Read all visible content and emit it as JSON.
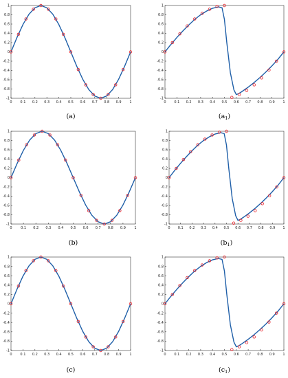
{
  "chart_data": [
    {
      "type": "line",
      "caption": "(a)",
      "xlim": [
        0,
        1
      ],
      "ylim": [
        -1,
        1
      ],
      "xticks": [
        "0",
        "0.1",
        "0.2",
        "0.3",
        "0.4",
        "0.5",
        "0.6",
        "0.7",
        "0.8",
        "0.9",
        "1"
      ],
      "yticks": [
        "-1",
        "-0.8",
        "-0.6",
        "-0.4",
        "-0.2",
        "0",
        "0.2",
        "0.4",
        "0.6",
        "0.8",
        "1"
      ],
      "series": [
        {
          "kind": "line",
          "color": "#1f5fa8",
          "x": [
            0,
            0.05,
            0.1,
            0.15,
            0.2,
            0.25,
            0.3,
            0.35,
            0.4,
            0.45,
            0.5,
            0.55,
            0.6,
            0.65,
            0.7,
            0.75,
            0.8,
            0.85,
            0.9,
            0.95,
            1
          ],
          "y": [
            0,
            0.31,
            0.59,
            0.81,
            0.95,
            1,
            0.95,
            0.81,
            0.59,
            0.31,
            0,
            -0.31,
            -0.59,
            -0.81,
            -0.95,
            -1,
            -0.95,
            -0.81,
            -0.59,
            -0.31,
            0
          ]
        },
        {
          "kind": "markers",
          "color": "#e8222a",
          "x": [
            0,
            0.0625,
            0.125,
            0.1875,
            0.25,
            0.3125,
            0.375,
            0.4375,
            0.5,
            0.5625,
            0.625,
            0.6875,
            0.75,
            0.8125,
            0.875,
            0.9375,
            1
          ],
          "y": [
            0.0,
            0.38,
            0.71,
            0.92,
            1.0,
            0.92,
            0.71,
            0.38,
            0.0,
            -0.38,
            -0.71,
            -0.92,
            -1.0,
            -0.92,
            -0.71,
            -0.38,
            0.0
          ]
        }
      ]
    },
    {
      "type": "line",
      "caption": "(a",
      "caption_sub": "1",
      "caption_close": ")",
      "xlim": [
        0,
        1
      ],
      "ylim": [
        -1,
        1
      ],
      "xticks": [
        "0",
        "0.1",
        "0.2",
        "0.3",
        "0.4",
        "0.5",
        "0.6",
        "0.7",
        "0.8",
        "0.9",
        "1"
      ],
      "yticks": [
        "-1",
        "-0.8",
        "-0.6",
        "-0.4",
        "-0.2",
        "0",
        "0.2",
        "0.4",
        "0.6",
        "0.8",
        "1"
      ],
      "series": [
        {
          "kind": "line",
          "color": "#1f5fa8",
          "x": [
            0,
            0.05,
            0.1,
            0.15,
            0.2,
            0.25,
            0.3,
            0.35,
            0.4,
            0.45,
            0.48,
            0.5,
            0.52,
            0.55,
            0.58,
            0.6,
            0.62,
            0.65,
            0.7,
            0.75,
            0.8,
            0.85,
            0.9,
            0.95,
            1
          ],
          "y": [
            0,
            0.16,
            0.31,
            0.45,
            0.58,
            0.7,
            0.8,
            0.88,
            0.94,
            0.97,
            0.95,
            0.7,
            0.2,
            -0.45,
            -0.82,
            -0.92,
            -0.9,
            -0.85,
            -0.76,
            -0.66,
            -0.55,
            -0.43,
            -0.3,
            -0.16,
            0
          ]
        },
        {
          "kind": "markers",
          "color": "#e8222a",
          "x": [
            0,
            0.0625,
            0.125,
            0.1875,
            0.25,
            0.3125,
            0.375,
            0.4375,
            0.5,
            0.5625,
            0.625,
            0.6875,
            0.75,
            0.8125,
            0.875,
            0.9375,
            1
          ],
          "y": [
            0.0,
            0.2,
            0.39,
            0.56,
            0.71,
            0.83,
            0.92,
            0.98,
            1.0,
            -0.98,
            -0.92,
            -0.83,
            -0.71,
            -0.56,
            -0.39,
            -0.2,
            0.0
          ]
        }
      ]
    },
    {
      "type": "line",
      "caption": "(b)",
      "xlim": [
        0,
        1
      ],
      "ylim": [
        -1,
        1
      ],
      "xticks": [
        "0",
        "0.1",
        "0.2",
        "0.3",
        "0.4",
        "0.5",
        "0.6",
        "0.7",
        "0.8",
        "0.9",
        "1"
      ],
      "yticks": [
        "-1",
        "-0.8",
        "-0.6",
        "-0.4",
        "-0.2",
        "0",
        "0.2",
        "0.4",
        "0.6",
        "0.8",
        "1"
      ],
      "series": [
        {
          "kind": "line",
          "color": "#1f5fa8",
          "x": [
            0,
            0.05,
            0.1,
            0.15,
            0.2,
            0.25,
            0.3,
            0.35,
            0.4,
            0.45,
            0.5,
            0.55,
            0.6,
            0.65,
            0.7,
            0.75,
            0.8,
            0.85,
            0.9,
            0.95,
            1
          ],
          "y": [
            0,
            0.31,
            0.59,
            0.81,
            0.95,
            1,
            0.95,
            0.81,
            0.59,
            0.31,
            0,
            -0.31,
            -0.59,
            -0.81,
            -0.95,
            -1,
            -0.95,
            -0.81,
            -0.59,
            -0.31,
            0
          ]
        },
        {
          "kind": "markers",
          "color": "#e8222a",
          "x": [
            0,
            0.0625,
            0.125,
            0.1875,
            0.25,
            0.3125,
            0.375,
            0.4375,
            0.5,
            0.5625,
            0.625,
            0.6875,
            0.75,
            0.8125,
            0.875,
            0.9375,
            1
          ],
          "y": [
            0.0,
            0.38,
            0.71,
            0.92,
            1.0,
            0.92,
            0.71,
            0.38,
            0.0,
            -0.38,
            -0.71,
            -0.92,
            -1.0,
            -0.92,
            -0.71,
            -0.38,
            0.0
          ]
        }
      ]
    },
    {
      "type": "line",
      "caption": "(b",
      "caption_sub": "1",
      "caption_close": ")",
      "xlim": [
        0,
        1
      ],
      "ylim": [
        -1,
        1
      ],
      "xticks": [
        "0",
        "0.1",
        "0.2",
        "0.3",
        "0.4",
        "0.5",
        "0.6",
        "0.7",
        "0.8",
        "0.9",
        "1"
      ],
      "yticks": [
        "-1",
        "-0.8",
        "-0.6",
        "-0.4",
        "-0.2",
        "0",
        "0.2",
        "0.4",
        "0.6",
        "0.8",
        "1"
      ],
      "series": [
        {
          "kind": "line",
          "color": "#1f5fa8",
          "x": [
            0,
            0.05,
            0.1,
            0.15,
            0.2,
            0.25,
            0.3,
            0.35,
            0.4,
            0.45,
            0.48,
            0.5,
            0.52,
            0.55,
            0.58,
            0.6,
            0.62,
            0.65,
            0.7,
            0.75,
            0.8,
            0.85,
            0.9,
            0.95,
            1
          ],
          "y": [
            0,
            0.16,
            0.31,
            0.45,
            0.58,
            0.7,
            0.8,
            0.88,
            0.94,
            0.97,
            0.95,
            0.7,
            0.2,
            -0.45,
            -0.82,
            -0.92,
            -0.9,
            -0.85,
            -0.76,
            -0.66,
            -0.55,
            -0.43,
            -0.3,
            -0.16,
            0
          ]
        },
        {
          "kind": "markers",
          "color": "#e8222a",
          "x": [
            0,
            0.0625,
            0.125,
            0.1875,
            0.25,
            0.3125,
            0.375,
            0.4375,
            0.5,
            0.5625,
            0.625,
            0.6875,
            0.75,
            0.8125,
            0.875,
            0.9375,
            1
          ],
          "y": [
            0.0,
            0.2,
            0.39,
            0.56,
            0.71,
            0.83,
            0.92,
            0.98,
            1.0,
            -0.98,
            -0.92,
            -0.83,
            -0.71,
            -0.56,
            -0.39,
            -0.2,
            0.0
          ]
        }
      ]
    },
    {
      "type": "line",
      "caption": "(c)",
      "xlim": [
        0,
        1
      ],
      "ylim": [
        -1,
        1
      ],
      "xticks": [
        "0",
        "0.1",
        "0.2",
        "0.3",
        "0.4",
        "0.5",
        "0.6",
        "0.7",
        "0.8",
        "0.9",
        "1"
      ],
      "yticks": [
        "-1",
        "-0.8",
        "-0.6",
        "-0.4",
        "-0.2",
        "0",
        "0.2",
        "0.4",
        "0.6",
        "0.8",
        "1"
      ],
      "series": [
        {
          "kind": "line",
          "color": "#1f5fa8",
          "x": [
            0,
            0.05,
            0.1,
            0.15,
            0.2,
            0.25,
            0.3,
            0.35,
            0.4,
            0.45,
            0.5,
            0.55,
            0.6,
            0.65,
            0.7,
            0.75,
            0.8,
            0.85,
            0.9,
            0.95,
            1
          ],
          "y": [
            0,
            0.31,
            0.59,
            0.81,
            0.95,
            1,
            0.95,
            0.81,
            0.59,
            0.31,
            0,
            -0.31,
            -0.59,
            -0.81,
            -0.95,
            -1,
            -0.95,
            -0.81,
            -0.59,
            -0.31,
            0
          ]
        },
        {
          "kind": "markers",
          "color": "#e8222a",
          "x": [
            0,
            0.0625,
            0.125,
            0.1875,
            0.25,
            0.3125,
            0.375,
            0.4375,
            0.5,
            0.5625,
            0.625,
            0.6875,
            0.75,
            0.8125,
            0.875,
            0.9375,
            1
          ],
          "y": [
            0.0,
            0.38,
            0.71,
            0.92,
            1.0,
            0.92,
            0.71,
            0.38,
            0.0,
            -0.38,
            -0.71,
            -0.92,
            -1.0,
            -0.92,
            -0.71,
            -0.38,
            0.0
          ]
        }
      ]
    },
    {
      "type": "line",
      "caption": "(c",
      "caption_sub": "1",
      "caption_close": ")",
      "xlim": [
        0,
        1
      ],
      "ylim": [
        -1,
        1
      ],
      "xticks": [
        "0",
        "0.1",
        "0.2",
        "0.3",
        "0.4",
        "0.5",
        "0.6",
        "0.7",
        "0.8",
        "0.9",
        "1"
      ],
      "yticks": [
        "-1",
        "-0.8",
        "-0.6",
        "-0.4",
        "-0.2",
        "0",
        "0.2",
        "0.4",
        "0.6",
        "0.8",
        "1"
      ],
      "series": [
        {
          "kind": "line",
          "color": "#1f5fa8",
          "x": [
            0,
            0.05,
            0.1,
            0.15,
            0.2,
            0.25,
            0.3,
            0.35,
            0.4,
            0.45,
            0.48,
            0.5,
            0.52,
            0.55,
            0.58,
            0.6,
            0.62,
            0.65,
            0.7,
            0.75,
            0.8,
            0.85,
            0.9,
            0.95,
            1
          ],
          "y": [
            0,
            0.16,
            0.31,
            0.45,
            0.58,
            0.7,
            0.8,
            0.88,
            0.94,
            0.97,
            0.95,
            0.7,
            0.2,
            -0.45,
            -0.82,
            -0.92,
            -0.9,
            -0.85,
            -0.76,
            -0.66,
            -0.55,
            -0.43,
            -0.3,
            -0.16,
            0
          ]
        },
        {
          "kind": "markers",
          "color": "#e8222a",
          "x": [
            0,
            0.0625,
            0.125,
            0.1875,
            0.25,
            0.3125,
            0.375,
            0.4375,
            0.5,
            0.5625,
            0.625,
            0.6875,
            0.75,
            0.8125,
            0.875,
            0.9375,
            1
          ],
          "y": [
            0.0,
            0.2,
            0.39,
            0.56,
            0.71,
            0.83,
            0.92,
            0.98,
            1.0,
            -0.98,
            -0.92,
            -0.83,
            -0.71,
            -0.56,
            -0.39,
            -0.2,
            0.0
          ]
        }
      ]
    }
  ]
}
